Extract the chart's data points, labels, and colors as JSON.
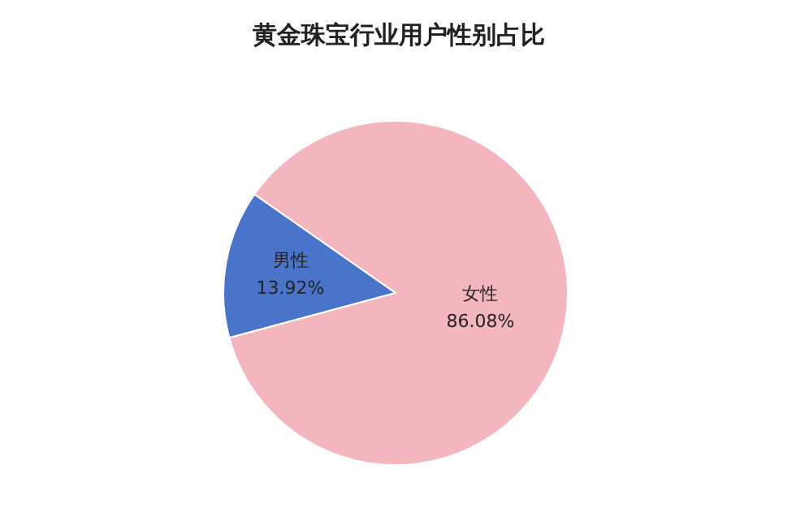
{
  "chart_data": {
    "type": "pie",
    "title": "黄金珠宝行业用户性别占比",
    "categories": [
      "男性",
      "女性"
    ],
    "values": [
      13.92,
      86.08
    ],
    "colors": [
      "#4a74c9",
      "#f4b6be"
    ],
    "value_labels": [
      "13.92%",
      "86.08%"
    ]
  }
}
